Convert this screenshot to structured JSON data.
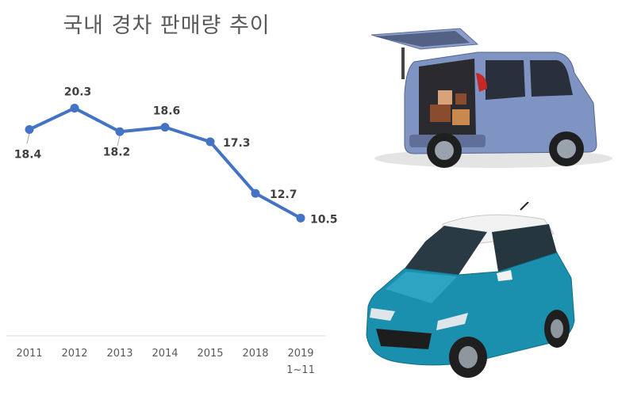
{
  "chart_data": {
    "type": "line",
    "title": "국내 경차 판매량 추이",
    "categories": [
      "2011",
      "2012",
      "2013",
      "2014",
      "2015",
      "2018",
      "2019"
    ],
    "category_sublabels": [
      "",
      "",
      "",
      "",
      "",
      "",
      "1~11"
    ],
    "series": [
      {
        "values": [
          18.4,
          20.3,
          18.2,
          18.6,
          17.3,
          12.7,
          10.5
        ],
        "labels": [
          "18.4",
          "20.3",
          "18.2",
          "18.6",
          "17.3",
          "12.7",
          "10.5"
        ],
        "color": "#4472C4"
      }
    ],
    "ylim": [
      0,
      25
    ],
    "grid": false,
    "legend": "none",
    "axis_color": "#D9D9D9",
    "tick_label_color": "#595959",
    "data_label_color": "#404040"
  },
  "images": [
    {
      "subject": "light-blue-boxy-kei-car-rear-door-open",
      "body_color": "#7F94C3"
    },
    {
      "subject": "teal-hatchback-white-roof",
      "body_color": "#1B8FAE",
      "roof_color": "#F2F2F2"
    }
  ]
}
